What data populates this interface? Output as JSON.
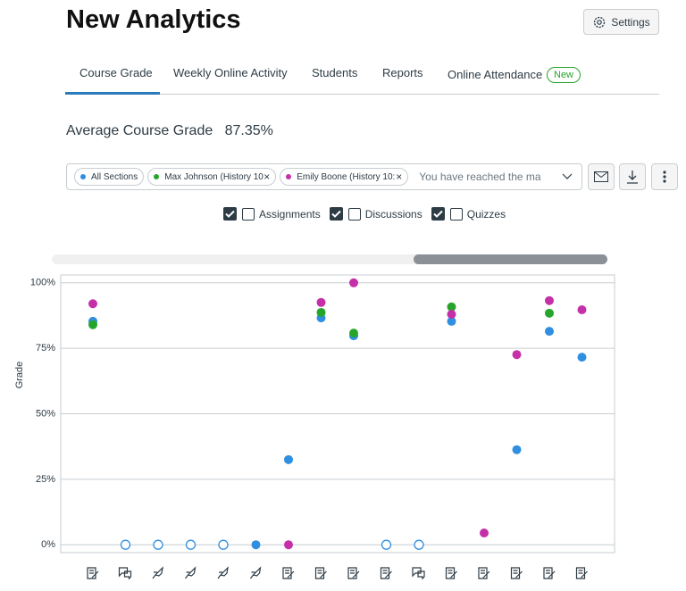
{
  "header": {
    "title": "New Analytics",
    "settings": "Settings"
  },
  "tabs": {
    "items": [
      "Course Grade",
      "Weekly Online Activity",
      "Students",
      "Reports",
      "Online Attendance"
    ],
    "badge": "New"
  },
  "summary": {
    "label": "Average Course Grade",
    "value": "87.35%"
  },
  "filter": {
    "placeholder": "You have reached the ma"
  },
  "toggles": [
    "Assignments",
    "Discussions",
    "Quizzes"
  ],
  "chart_data": {
    "type": "scatter",
    "y_label": "Grade",
    "categories": [
      null,
      null,
      null,
      null,
      null,
      null,
      null,
      null,
      null,
      null,
      null,
      null,
      null,
      null,
      null,
      null
    ],
    "icons": [
      "assignment",
      "discussion",
      "quiz",
      "quiz",
      "quiz",
      "quiz",
      "assignment",
      "assignment",
      "assignment",
      "assignment",
      "discussion",
      "assignment",
      "assignment",
      "assignment",
      "assignment",
      "assignment"
    ],
    "ylim": [
      -3,
      103
    ],
    "yticks": [
      {
        "value": 0,
        "label": "0%"
      },
      {
        "value": 25,
        "label": "25%"
      },
      {
        "value": 50,
        "label": "50%"
      },
      {
        "value": 75,
        "label": "75%"
      },
      {
        "value": 100,
        "label": "100%"
      }
    ],
    "grid": true,
    "series": [
      {
        "name": "All Sections",
        "color": "#2f8fe0",
        "values": [
          85.3,
          0,
          0,
          0,
          0,
          0,
          32.5,
          86.6,
          79.8,
          0,
          0,
          85.3,
          null,
          36.3,
          81.5,
          71.6
        ],
        "open_points": [
          1,
          2,
          3,
          4,
          9,
          10
        ]
      },
      {
        "name": "Max Johnson (History 10",
        "color": "#27a52b",
        "values": [
          84,
          null,
          null,
          null,
          null,
          null,
          null,
          88.7,
          80.8,
          null,
          null,
          90.8,
          null,
          null,
          88.4,
          null
        ]
      },
      {
        "name": "Emily Boone (History 10:",
        "color": "#c52fa8",
        "values": [
          92,
          null,
          null,
          null,
          null,
          null,
          0,
          92.5,
          100,
          null,
          null,
          88,
          4.5,
          72.6,
          93.2,
          89.7
        ]
      }
    ]
  }
}
